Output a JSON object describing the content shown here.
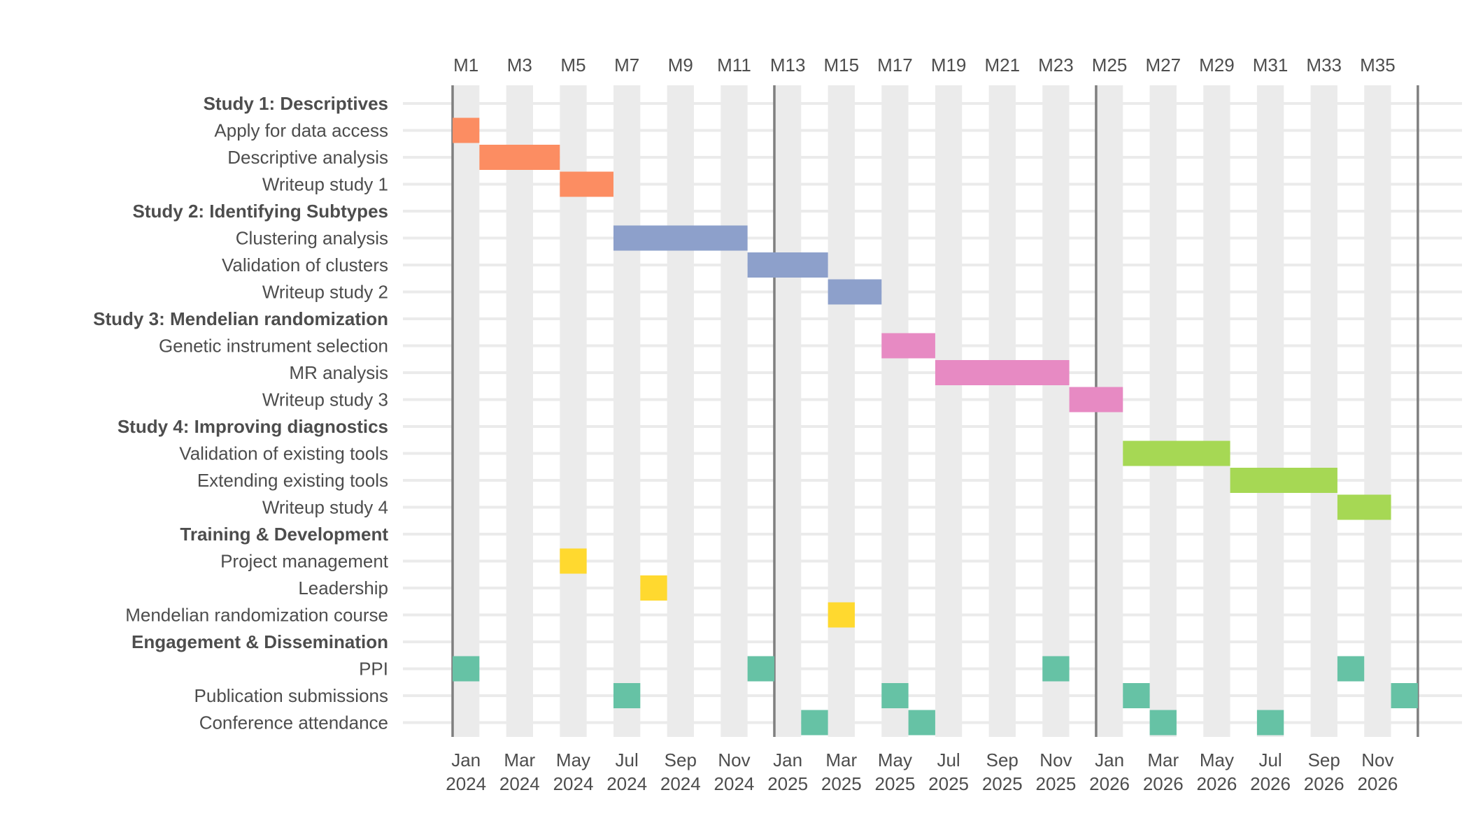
{
  "chart_data": {
    "type": "gantt",
    "title": "",
    "xlabel": "",
    "ylabel": "",
    "x_unit": "project month",
    "xlim": [
      1,
      37
    ],
    "top_axis_ticks": [
      "M1",
      "M3",
      "M5",
      "M7",
      "M9",
      "M11",
      "M13",
      "M15",
      "M17",
      "M19",
      "M21",
      "M23",
      "M25",
      "M27",
      "M29",
      "M31",
      "M33",
      "M35"
    ],
    "bottom_axis_ticks": [
      [
        "Jan",
        "2024"
      ],
      [
        "Mar",
        "2024"
      ],
      [
        "May",
        "2024"
      ],
      [
        "Jul",
        "2024"
      ],
      [
        "Sep",
        "2024"
      ],
      [
        "Nov",
        "2024"
      ],
      [
        "Jan",
        "2025"
      ],
      [
        "Mar",
        "2025"
      ],
      [
        "May",
        "2025"
      ],
      [
        "Jul",
        "2025"
      ],
      [
        "Sep",
        "2025"
      ],
      [
        "Nov",
        "2025"
      ],
      [
        "Jan",
        "2026"
      ],
      [
        "Mar",
        "2026"
      ],
      [
        "May",
        "2026"
      ],
      [
        "Jul",
        "2026"
      ],
      [
        "Sep",
        "2026"
      ],
      [
        "Nov",
        "2026"
      ]
    ],
    "year_boundaries": [
      1,
      13,
      25,
      37
    ],
    "category_colors": {
      "Study 1": "#FC8D62",
      "Study 2": "#8DA0CB",
      "Study 3": "#E78AC3",
      "Study 4": "#A6D854",
      "Training": "#FFD92F",
      "Engagement": "#66C2A5"
    },
    "rows": [
      {
        "label": "Study 1: Descriptives",
        "group": true
      },
      {
        "label": "Apply for data access",
        "category": "Study 1",
        "spans": [
          [
            1,
            2
          ]
        ]
      },
      {
        "label": "Descriptive analysis",
        "category": "Study 1",
        "spans": [
          [
            2,
            5
          ]
        ]
      },
      {
        "label": "Writeup study 1",
        "category": "Study 1",
        "spans": [
          [
            5,
            7
          ]
        ]
      },
      {
        "label": "Study 2: Identifying Subtypes",
        "group": true
      },
      {
        "label": "Clustering analysis",
        "category": "Study 2",
        "spans": [
          [
            7,
            12
          ]
        ]
      },
      {
        "label": "Validation of clusters",
        "category": "Study 2",
        "spans": [
          [
            12,
            15
          ]
        ]
      },
      {
        "label": "Writeup study 2",
        "category": "Study 2",
        "spans": [
          [
            15,
            17
          ]
        ]
      },
      {
        "label": "Study 3: Mendelian randomization",
        "group": true
      },
      {
        "label": "Genetic instrument selection",
        "category": "Study 3",
        "spans": [
          [
            17,
            19
          ]
        ]
      },
      {
        "label": "MR analysis",
        "category": "Study 3",
        "spans": [
          [
            19,
            24
          ]
        ]
      },
      {
        "label": "Writeup study 3",
        "category": "Study 3",
        "spans": [
          [
            24,
            26
          ]
        ]
      },
      {
        "label": "Study 4: Improving diagnostics",
        "group": true
      },
      {
        "label": "Validation of existing tools",
        "category": "Study 4",
        "spans": [
          [
            26,
            30
          ]
        ]
      },
      {
        "label": "Extending existing tools",
        "category": "Study 4",
        "spans": [
          [
            30,
            34
          ]
        ]
      },
      {
        "label": "Writeup study 4",
        "category": "Study 4",
        "spans": [
          [
            34,
            36
          ]
        ]
      },
      {
        "label": "Training & Development",
        "group": true
      },
      {
        "label": "Project management",
        "category": "Training",
        "spans": [
          [
            5,
            6
          ]
        ]
      },
      {
        "label": "Leadership",
        "category": "Training",
        "spans": [
          [
            8,
            9
          ]
        ]
      },
      {
        "label": "Mendelian randomization course",
        "category": "Training",
        "spans": [
          [
            15,
            16
          ]
        ]
      },
      {
        "label": "Engagement & Dissemination",
        "group": true
      },
      {
        "label": "PPI",
        "category": "Engagement",
        "spans": [
          [
            1,
            2
          ],
          [
            12,
            13
          ],
          [
            23,
            24
          ],
          [
            34,
            35
          ]
        ]
      },
      {
        "label": "Publication submissions",
        "category": "Engagement",
        "spans": [
          [
            7,
            8
          ],
          [
            17,
            18
          ],
          [
            26,
            27
          ],
          [
            36,
            37
          ]
        ]
      },
      {
        "label": "Conference attendance",
        "category": "Engagement",
        "spans": [
          [
            14,
            15
          ],
          [
            18,
            19
          ],
          [
            27,
            28
          ],
          [
            31,
            32
          ]
        ]
      }
    ]
  }
}
